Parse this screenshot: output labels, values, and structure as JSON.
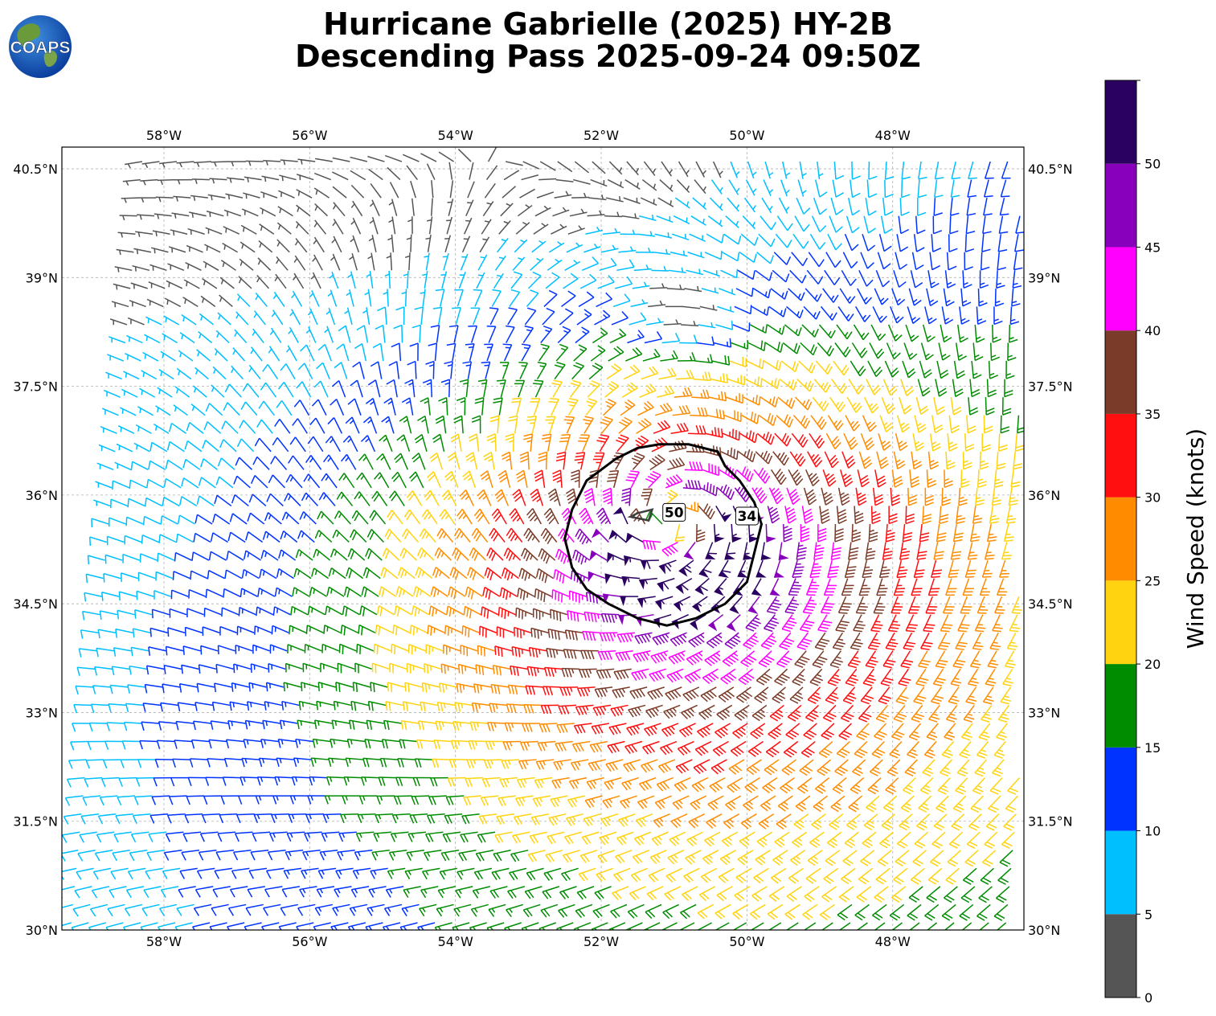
{
  "title": {
    "line1": "Hurricane Gabrielle (2025) HY-2B",
    "line2": "Descending Pass 2025-09-24 09:50Z"
  },
  "logo": {
    "text": "COAPS",
    "icon": "globe-icon"
  },
  "map": {
    "lon_range": [
      -59.4,
      -46.2
    ],
    "lat_range": [
      30.0,
      40.8
    ],
    "lon_ticks": [
      {
        "value": -58,
        "label": "58°W"
      },
      {
        "value": -56,
        "label": "56°W"
      },
      {
        "value": -54,
        "label": "54°W"
      },
      {
        "value": -52,
        "label": "52°W"
      },
      {
        "value": -50,
        "label": "50°W"
      },
      {
        "value": -48,
        "label": "48°W"
      }
    ],
    "lat_ticks": [
      {
        "value": 30,
        "label": "30°N"
      },
      {
        "value": 31.5,
        "label": "31.5°N"
      },
      {
        "value": 33,
        "label": "33°N"
      },
      {
        "value": 34.5,
        "label": "34.5°N"
      },
      {
        "value": 36,
        "label": "36°N"
      },
      {
        "value": 37.5,
        "label": "37.5°N"
      },
      {
        "value": 39,
        "label": "39°N"
      },
      {
        "value": 40.5,
        "label": "40.5°N"
      }
    ],
    "grid": true,
    "storm_center": {
      "lon": -51.0,
      "lat": 35.6
    },
    "contours": [
      {
        "label": "34",
        "color": "#000000",
        "label_pos": {
          "lon": -50.0,
          "lat": 35.7
        },
        "points": [
          [
            -51.2,
            36.7
          ],
          [
            -50.8,
            36.7
          ],
          [
            -50.4,
            36.6
          ],
          [
            -50.3,
            36.4
          ],
          [
            -50.1,
            36.2
          ],
          [
            -49.9,
            35.9
          ],
          [
            -49.8,
            35.6
          ],
          [
            -49.9,
            35.2
          ],
          [
            -50.0,
            34.8
          ],
          [
            -50.3,
            34.5
          ],
          [
            -50.7,
            34.3
          ],
          [
            -51.1,
            34.2
          ],
          [
            -51.5,
            34.3
          ],
          [
            -51.9,
            34.5
          ],
          [
            -52.2,
            34.7
          ],
          [
            -52.4,
            35.0
          ],
          [
            -52.5,
            35.4
          ],
          [
            -52.4,
            35.8
          ],
          [
            -52.2,
            36.2
          ],
          [
            -51.8,
            36.5
          ],
          [
            -51.5,
            36.65
          ],
          [
            -51.2,
            36.7
          ]
        ]
      },
      {
        "label": "50",
        "color": "#404040",
        "label_pos": {
          "lon": -51.0,
          "lat": 35.75
        },
        "points": [
          [
            -51.5,
            35.75
          ],
          [
            -51.3,
            35.8
          ],
          [
            -51.35,
            35.65
          ],
          [
            -51.6,
            35.7
          ],
          [
            -51.5,
            35.75
          ]
        ]
      }
    ]
  },
  "wind_field": {
    "units": "knots",
    "note_hemisphere": "N",
    "vortex": {
      "center_lon": -51.0,
      "center_lat": 35.6,
      "peak_kt": 52,
      "rmw_deg": 0.5,
      "decay_deg": 2.8,
      "background_kt": 12
    },
    "calm_region": {
      "lon": -51.0,
      "lat": 38.6,
      "radius_deg": 0.9
    },
    "footprint_west_lon_at_south": -59.4,
    "footprint_west_lon_at_north": -58.4
  },
  "colorbar": {
    "label": "Wind Speed (knots)",
    "bins": [
      {
        "from": 0,
        "to": 5,
        "color": "#555555"
      },
      {
        "from": 5,
        "to": 10,
        "color": "#00bfff"
      },
      {
        "from": 10,
        "to": 15,
        "color": "#0033ff"
      },
      {
        "from": 15,
        "to": 20,
        "color": "#008c00"
      },
      {
        "from": 20,
        "to": 25,
        "color": "#ffd30f"
      },
      {
        "from": 25,
        "to": 30,
        "color": "#ff8c00"
      },
      {
        "from": 30,
        "to": 35,
        "color": "#ff0f0f"
      },
      {
        "from": 35,
        "to": 40,
        "color": "#7a3b28"
      },
      {
        "from": 40,
        "to": 45,
        "color": "#ff00ff"
      },
      {
        "from": 45,
        "to": 50,
        "color": "#8800bb"
      },
      {
        "from": 50,
        "to": 55,
        "color": "#2a0060"
      }
    ],
    "ticks": [
      "0",
      "5",
      "10",
      "15",
      "20",
      "25",
      "30",
      "35",
      "40",
      "45",
      "50"
    ],
    "max": 55
  }
}
